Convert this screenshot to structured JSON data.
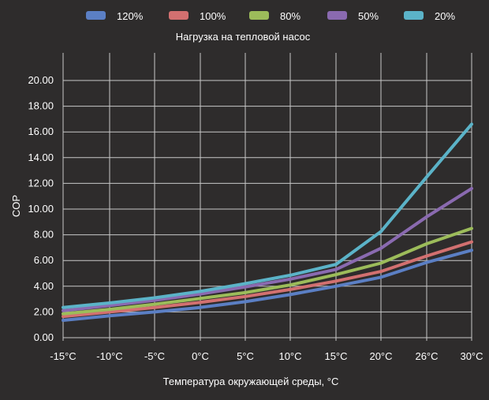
{
  "chart_data": {
    "type": "line",
    "legend_title": "Нагрузка на тепловой насос",
    "xlabel": "Температура окружающей среды, °C",
    "ylabel": "COP",
    "categories": [
      "-15°C",
      "-10°C",
      "-5°C",
      "0°C",
      "5°C",
      "10°C",
      "15°C",
      "20°C",
      "26°C",
      "30°C"
    ],
    "x_values": [
      -15,
      -10,
      -5,
      0,
      5,
      10,
      15,
      20,
      26,
      30
    ],
    "ylim": [
      0,
      20
    ],
    "y_ticks": [
      "0.00",
      "2.00",
      "4.00",
      "6.00",
      "8.00",
      "10.00",
      "12.00",
      "14.00",
      "16.00",
      "18.00",
      "20.00"
    ],
    "grid": true,
    "legend_position": "top",
    "series": [
      {
        "name": "120%",
        "color": "#5b7fc4",
        "values": [
          1.35,
          1.7,
          2.0,
          2.35,
          2.8,
          3.35,
          4.0,
          4.7,
          5.85,
          6.8
        ]
      },
      {
        "name": "100%",
        "color": "#d27070",
        "values": [
          1.65,
          2.0,
          2.35,
          2.75,
          3.2,
          3.75,
          4.4,
          5.15,
          6.35,
          7.45
        ]
      },
      {
        "name": "80%",
        "color": "#9cbc5a",
        "values": [
          1.85,
          2.2,
          2.6,
          3.05,
          3.5,
          4.1,
          4.9,
          5.8,
          7.3,
          8.5
        ]
      },
      {
        "name": "50%",
        "color": "#8a6ab0",
        "values": [
          2.1,
          2.5,
          2.9,
          3.4,
          3.95,
          4.55,
          5.3,
          6.95,
          9.4,
          11.6
        ]
      },
      {
        "name": "20%",
        "color": "#5bb3c8",
        "values": [
          2.35,
          2.7,
          3.1,
          3.6,
          4.2,
          4.85,
          5.7,
          8.25,
          12.5,
          16.6
        ]
      }
    ]
  }
}
